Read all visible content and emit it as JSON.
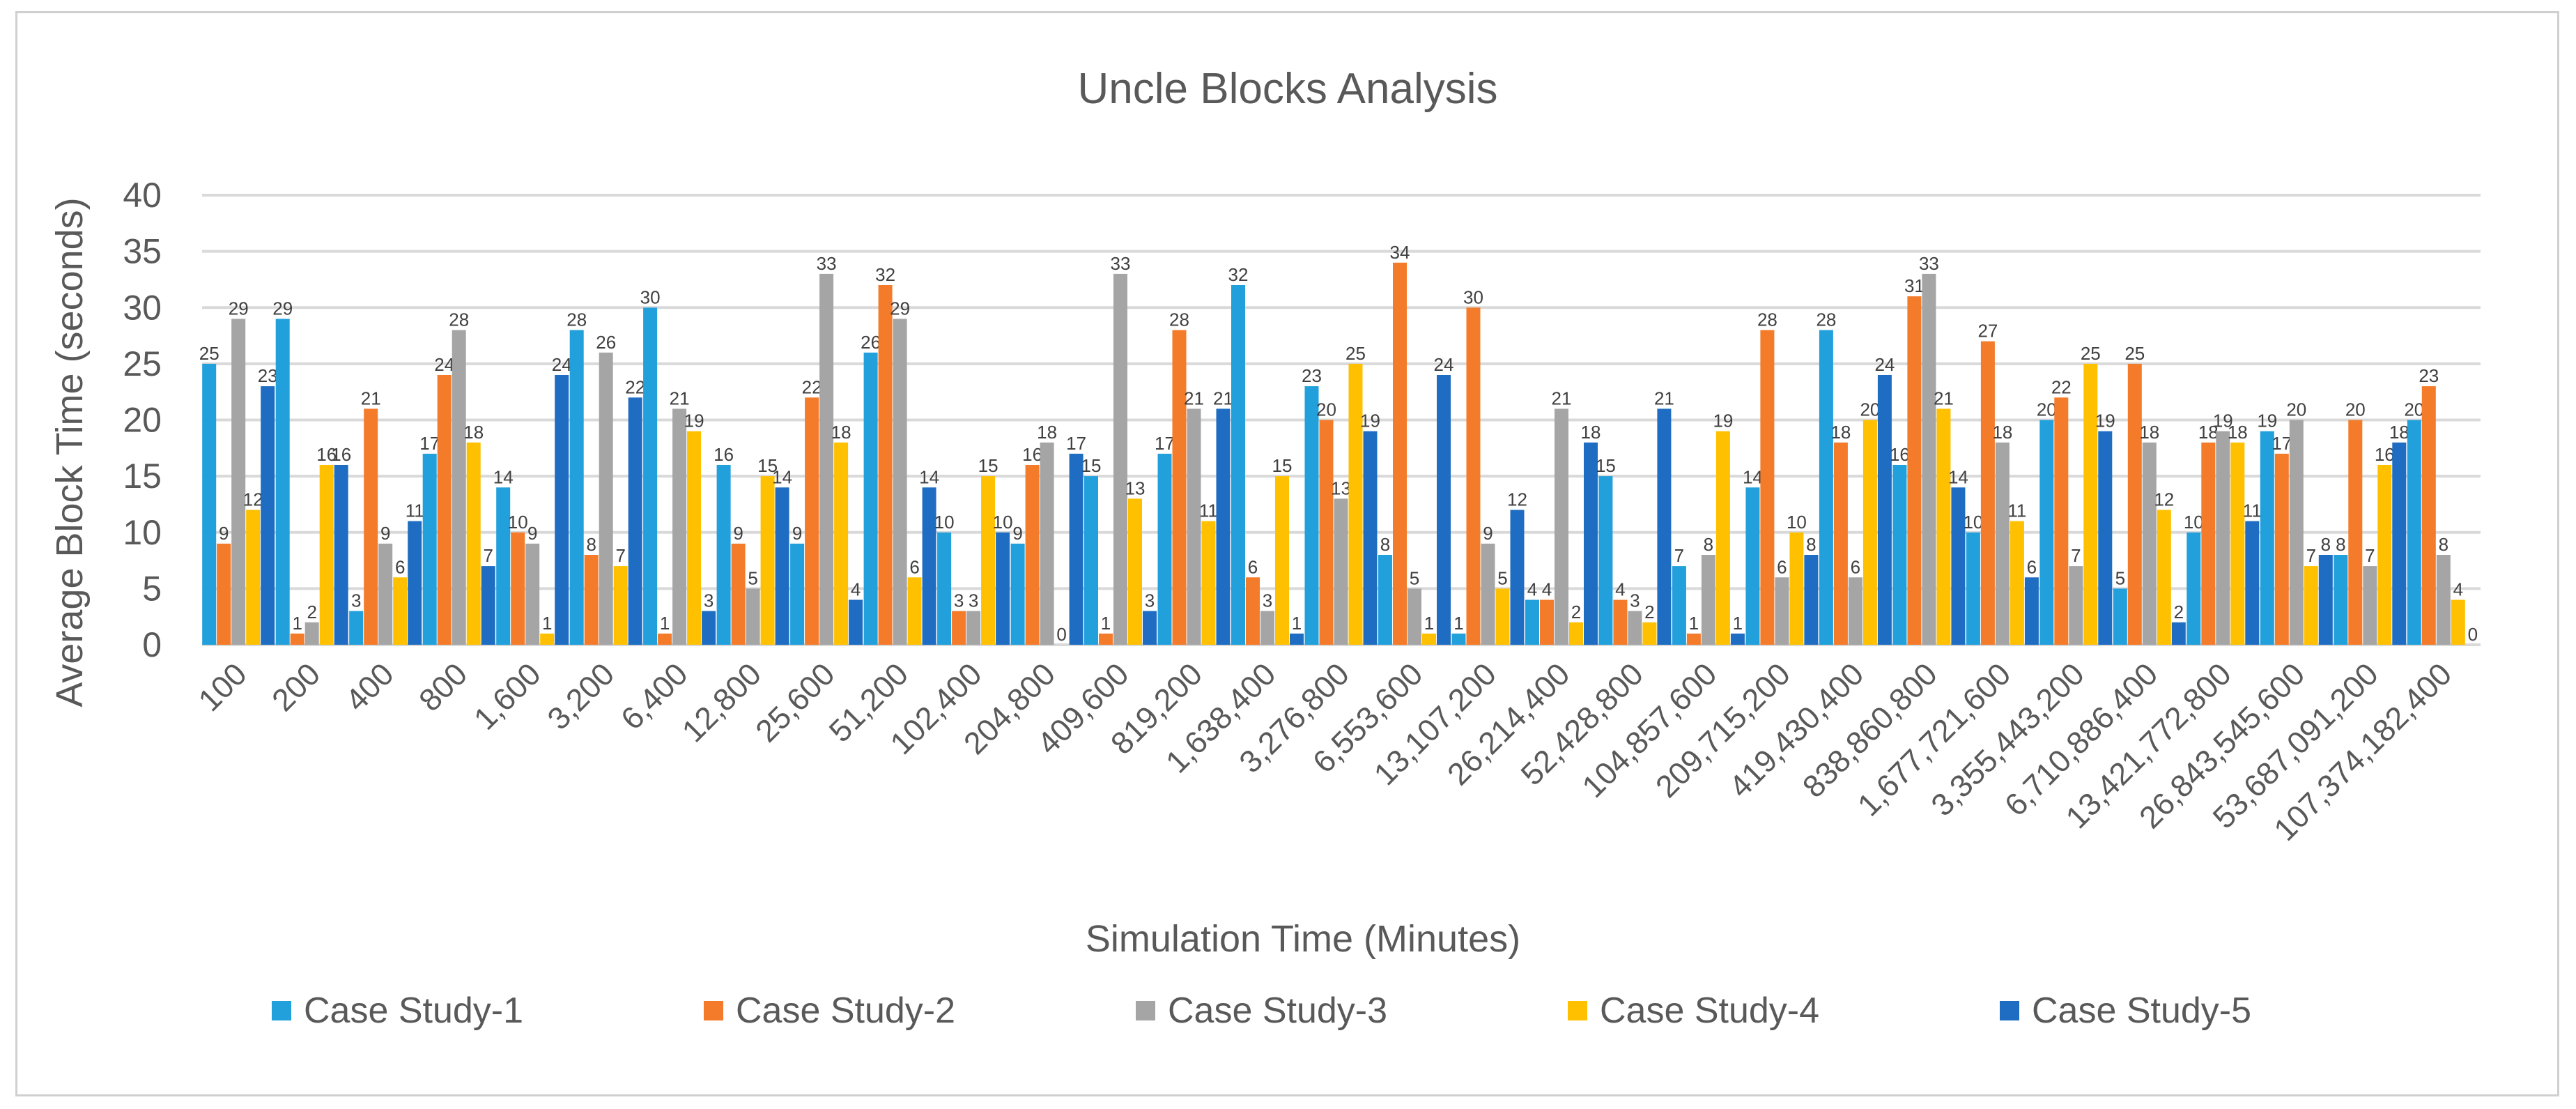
{
  "chart_data": {
    "type": "bar",
    "title": "Uncle Blocks Analysis",
    "xlabel": "Simulation Time (Minutes)",
    "ylabel": "Average Block Time (seconds)",
    "ylim": [
      0,
      40
    ],
    "yticks": [
      0,
      5,
      10,
      15,
      20,
      25,
      30,
      35,
      40
    ],
    "grid": true,
    "legend_position": "bottom",
    "categories": [
      "100",
      "200",
      "400",
      "800",
      "1,600",
      "3,200",
      "6,400",
      "12,800",
      "25,600",
      "51,200",
      "102,400",
      "204,800",
      "409,600",
      "819,200",
      "1,638,400",
      "3,276,800",
      "6,553,600",
      "13,107,200",
      "26,214,400",
      "52,428,800",
      "104,857,600",
      "209,715,200",
      "419,430,400",
      "838,860,800",
      "1,677,721,600",
      "3,355,443,200",
      "6,710,886,400",
      "13,421,772,800",
      "26,843,545,600",
      "53,687,091,200",
      "107,374,182,400"
    ],
    "series": [
      {
        "name": "Case Study-1",
        "color": "#21a0dc",
        "values": [
          25,
          29,
          3,
          17,
          14,
          28,
          30,
          16,
          9,
          26,
          10,
          9,
          15,
          17,
          32,
          23,
          8,
          1,
          4,
          15,
          7,
          14,
          28,
          16,
          10,
          20,
          5,
          10,
          19,
          8,
          20
        ]
      },
      {
        "name": "Case Study-2",
        "color": "#f47b2a",
        "values": [
          9,
          1,
          21,
          24,
          10,
          8,
          1,
          9,
          22,
          32,
          3,
          16,
          1,
          28,
          6,
          20,
          34,
          30,
          4,
          4,
          1,
          28,
          18,
          31,
          27,
          22,
          25,
          18,
          17,
          20,
          23
        ]
      },
      {
        "name": "Case Study-3",
        "color": "#a5a5a5",
        "values": [
          29,
          2,
          9,
          28,
          9,
          26,
          21,
          5,
          33,
          29,
          3,
          18,
          33,
          21,
          3,
          13,
          5,
          9,
          21,
          3,
          8,
          6,
          6,
          33,
          18,
          7,
          18,
          19,
          20,
          7,
          8
        ]
      },
      {
        "name": "Case Study-4",
        "color": "#ffc000",
        "values": [
          12,
          16,
          6,
          18,
          1,
          7,
          19,
          15,
          18,
          6,
          15,
          0,
          13,
          11,
          15,
          25,
          1,
          5,
          2,
          2,
          19,
          10,
          20,
          21,
          11,
          25,
          12,
          18,
          7,
          16,
          4
        ]
      },
      {
        "name": "Case Study-5",
        "color": "#1f6dc2",
        "values": [
          23,
          16,
          11,
          7,
          24,
          22,
          3,
          14,
          4,
          14,
          10,
          17,
          3,
          21,
          1,
          19,
          24,
          12,
          18,
          21,
          1,
          8,
          24,
          14,
          6,
          19,
          2,
          11,
          8,
          18,
          0
        ]
      }
    ]
  }
}
